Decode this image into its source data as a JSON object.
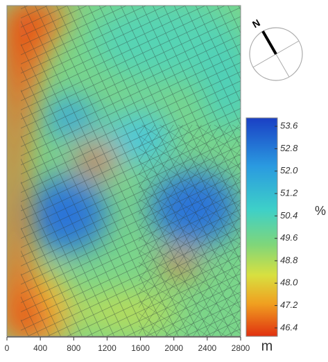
{
  "map": {
    "compass": {
      "label": "N"
    },
    "colorbar": {
      "range": [
        46.1,
        53.9
      ],
      "ticks": [
        53.6,
        52.8,
        {
          "value": 52,
          "label": "52.0"
        },
        51.2,
        50.4,
        49.6,
        48.8,
        {
          "value": 48,
          "label": "48.0"
        },
        47.2,
        46.4
      ],
      "unit": "%"
    },
    "x_axis": {
      "range": [
        0,
        2800
      ],
      "ticks": [
        0,
        400,
        800,
        1200,
        1600,
        2000,
        2400,
        2800
      ],
      "unit": "m"
    }
  }
}
